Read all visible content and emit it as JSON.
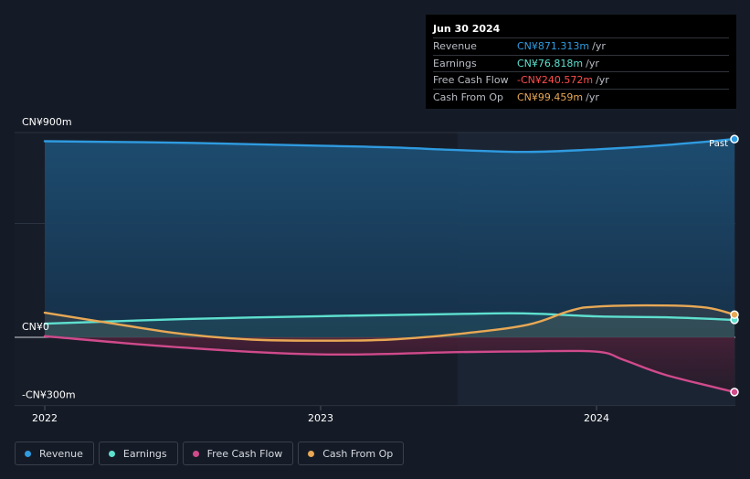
{
  "chart_data": {
    "type": "area",
    "x_ticks": [
      "2022",
      "2023",
      "2024"
    ],
    "y_ticks": [
      "CN¥900m",
      "CN¥0",
      "-CN¥300m"
    ],
    "ylim": [
      -300,
      900
    ],
    "grid": true,
    "past_label": "Past",
    "series": [
      {
        "name": "Revenue",
        "color": "#2f9be0",
        "x": [
          2022.0,
          2022.5,
          2023.0,
          2023.25,
          2023.5,
          2023.75,
          2024.0,
          2024.25,
          2024.5
        ],
        "values": [
          862,
          855,
          842,
          835,
          823,
          815,
          826,
          845,
          871.313
        ]
      },
      {
        "name": "Earnings",
        "color": "#5ee0cf",
        "x": [
          2022.0,
          2022.5,
          2023.0,
          2023.5,
          2023.75,
          2024.0,
          2024.25,
          2024.5
        ],
        "values": [
          60,
          80,
          93,
          103,
          105,
          92,
          88,
          76.818
        ]
      },
      {
        "name": "Free Cash Flow",
        "color": "#d04a8c",
        "x": [
          2022.0,
          2022.5,
          2023.0,
          2023.5,
          2023.75,
          2024.0,
          2024.1,
          2024.25,
          2024.5
        ],
        "values": [
          5,
          -45,
          -75,
          -65,
          -62,
          -63,
          -100,
          -165,
          -240.572
        ]
      },
      {
        "name": "Cash From Op",
        "color": "#e8a855",
        "x": [
          2022.0,
          2022.25,
          2022.5,
          2022.75,
          2023.0,
          2023.25,
          2023.5,
          2023.75,
          2023.9,
          2024.0,
          2024.25,
          2024.4,
          2024.5
        ],
        "values": [
          108,
          60,
          15,
          -10,
          -15,
          -10,
          15,
          55,
          115,
          135,
          140,
          130,
          99.459
        ]
      }
    ]
  },
  "tooltip": {
    "date": "Jun 30 2024",
    "rows": [
      {
        "label": "Revenue",
        "value": "CN¥871.313m",
        "unit": "/yr",
        "color": "#2f9be0"
      },
      {
        "label": "Earnings",
        "value": "CN¥76.818m",
        "unit": "/yr",
        "color": "#5ee0cf"
      },
      {
        "label": "Free Cash Flow",
        "value": "-CN¥240.572m",
        "unit": "/yr",
        "color": "#ff4d4d"
      },
      {
        "label": "Cash From Op",
        "value": "CN¥99.459m",
        "unit": "/yr",
        "color": "#e8a855"
      }
    ]
  },
  "legend": [
    {
      "label": "Revenue",
      "color": "#2f9be0"
    },
    {
      "label": "Earnings",
      "color": "#5ee0cf"
    },
    {
      "label": "Free Cash Flow",
      "color": "#d04a8c"
    },
    {
      "label": "Cash From Op",
      "color": "#e8a855"
    }
  ]
}
